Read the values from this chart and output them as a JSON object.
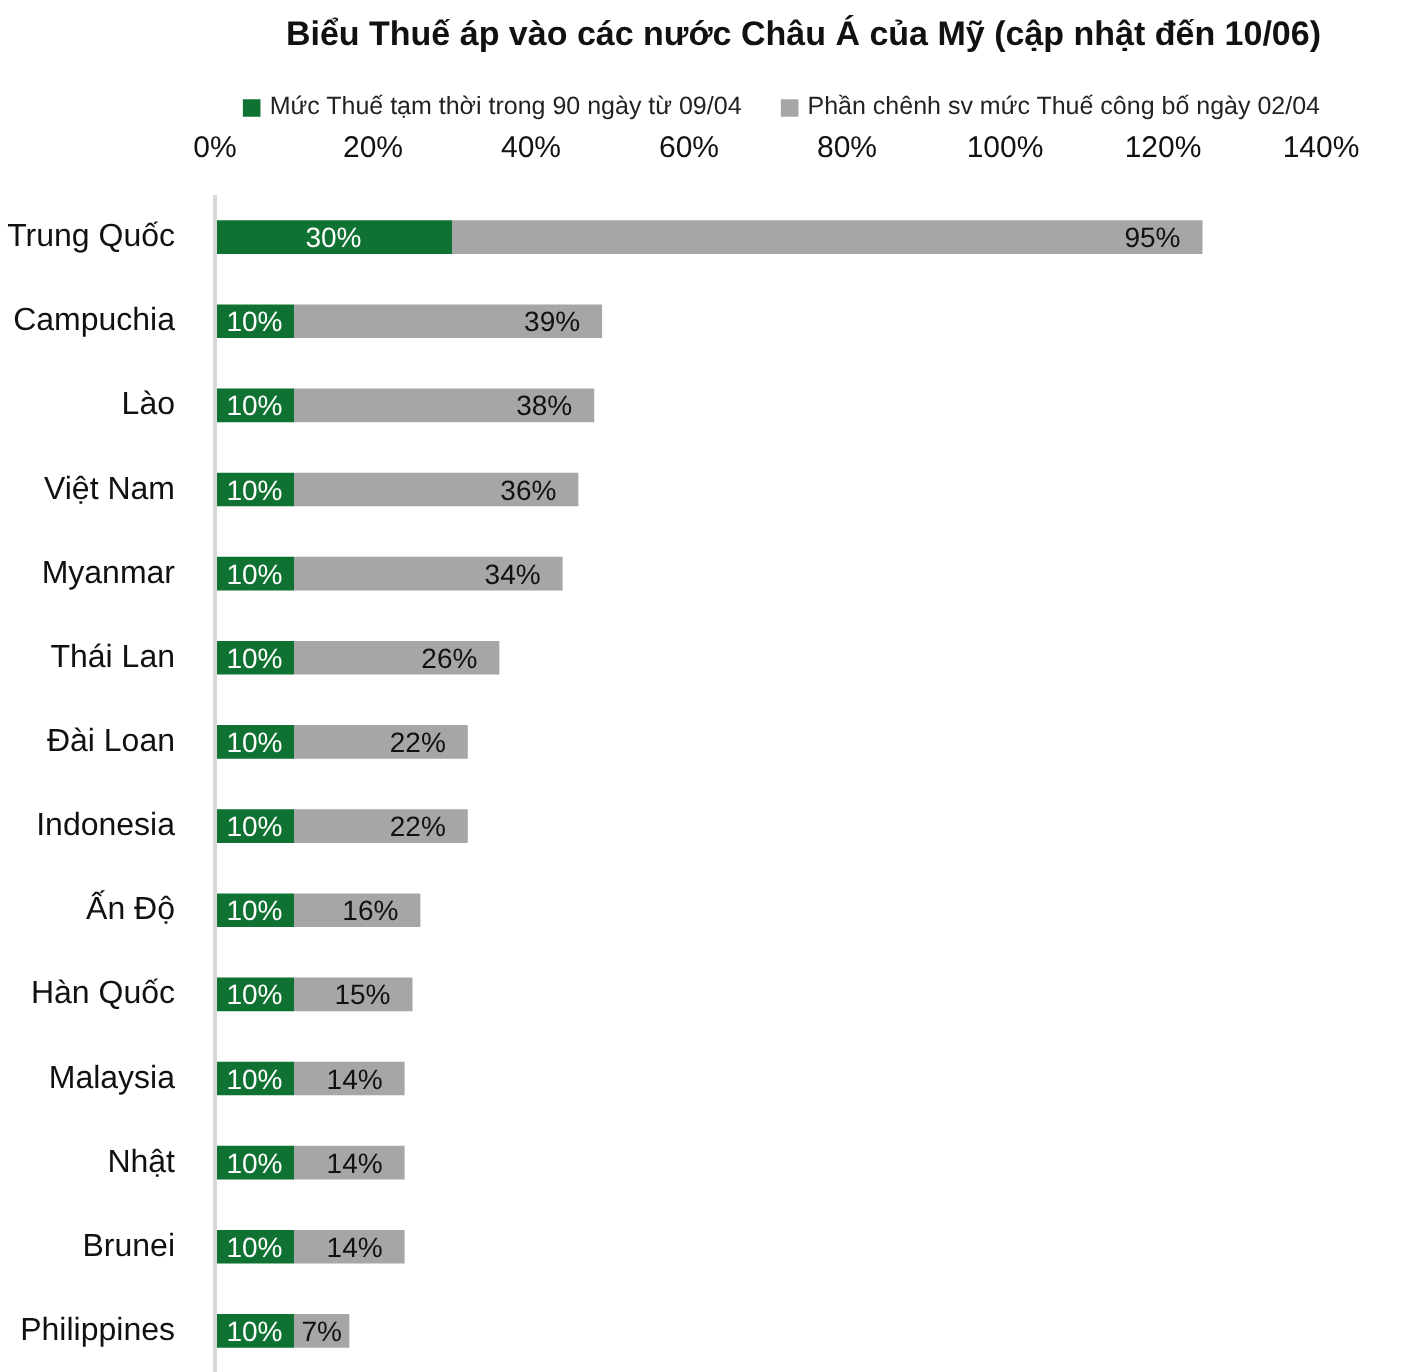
{
  "chart_data": {
    "type": "bar",
    "orientation": "horizontal",
    "stacked": true,
    "title": "Biểu Thuế áp vào các nước Châu Á của Mỹ (cập nhật đến 10/06)",
    "categories": [
      "Trung Quốc",
      "Campuchia",
      "Lào",
      "Việt Nam",
      "Myanmar",
      "Thái Lan",
      "Đài Loan",
      "Indonesia",
      "Ấn Độ",
      "Hàn Quốc",
      "Malaysia",
      "Nhật",
      "Brunei",
      "Philippines"
    ],
    "series": [
      {
        "name": "Mức Thuế tạm thời trong 90 ngày từ 09/04",
        "color": "#107232",
        "values": [
          30,
          10,
          10,
          10,
          10,
          10,
          10,
          10,
          10,
          10,
          10,
          10,
          10,
          10
        ],
        "value_labels": [
          "30%",
          "10%",
          "10%",
          "10%",
          "10%",
          "10%",
          "10%",
          "10%",
          "10%",
          "10%",
          "10%",
          "10%",
          "10%",
          "10%"
        ]
      },
      {
        "name": "Phần chênh sv mức Thuế công bố ngày 02/04",
        "color": "#a6a6a6",
        "values": [
          95,
          39,
          38,
          36,
          34,
          26,
          22,
          22,
          16,
          15,
          14,
          14,
          14,
          7
        ],
        "value_labels": [
          "95%",
          "39%",
          "38%",
          "36%",
          "34%",
          "26%",
          "22%",
          "22%",
          "16%",
          "15%",
          "14%",
          "14%",
          "14%",
          "7%"
        ]
      }
    ],
    "xlim": [
      0,
      140
    ],
    "xticks": [
      {
        "value": 0,
        "label": "0%"
      },
      {
        "value": 20,
        "label": "20%"
      },
      {
        "value": 40,
        "label": "40%"
      },
      {
        "value": 60,
        "label": "60%"
      },
      {
        "value": 80,
        "label": "80%"
      },
      {
        "value": 100,
        "label": "100%"
      },
      {
        "value": 120,
        "label": "120%"
      },
      {
        "value": 140,
        "label": "140%"
      }
    ],
    "grid": false,
    "legend": "top"
  }
}
